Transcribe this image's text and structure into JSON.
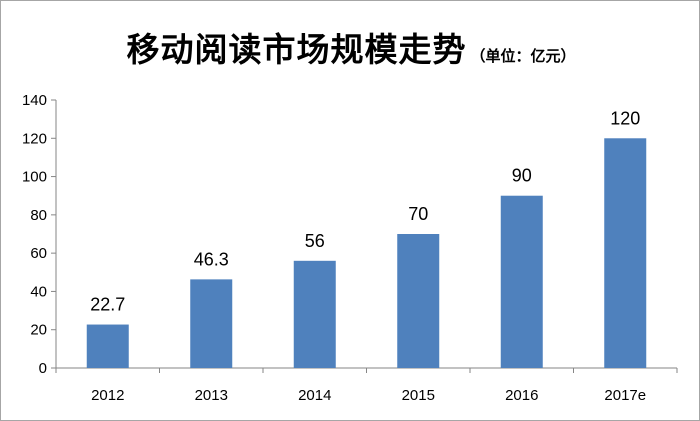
{
  "chart_data": {
    "type": "bar",
    "title": "移动阅读市场规模走势",
    "subtitle": "（单位：亿元）",
    "categories": [
      "2012",
      "2013",
      "2014",
      "2015",
      "2016",
      "2017e"
    ],
    "values": [
      22.7,
      46.3,
      56,
      70,
      90,
      120
    ],
    "data_labels": [
      "22.7",
      "46.3",
      "56",
      "70",
      "90",
      "120"
    ],
    "ylim": [
      0,
      140
    ],
    "yticks": [
      0,
      20,
      40,
      60,
      80,
      100,
      120,
      140
    ],
    "xlabel": "",
    "ylabel": "",
    "grid": false,
    "legend": "none",
    "bar_color": "#4f81bd"
  }
}
